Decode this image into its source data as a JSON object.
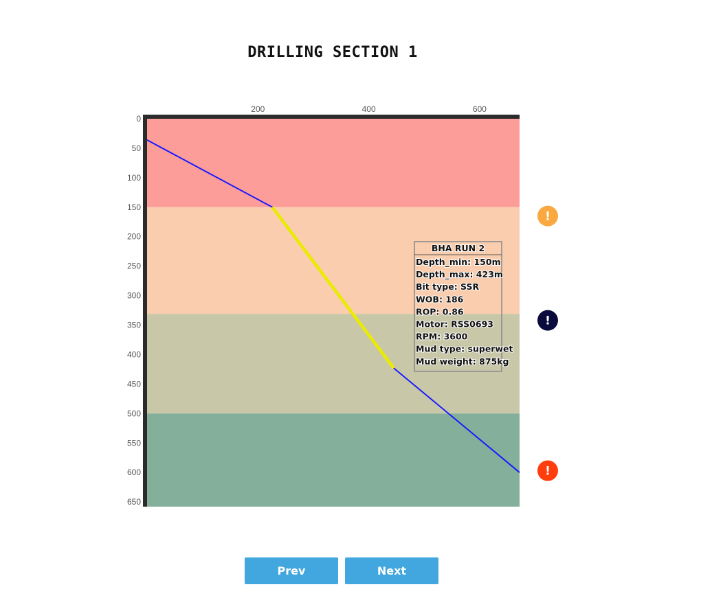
{
  "title": "DRILLING SECTION 1",
  "chart_data": {
    "type": "line",
    "title": "DRILLING SECTION 1",
    "x_ticks": [
      200,
      400,
      600
    ],
    "y_ticks": [
      0,
      50,
      100,
      150,
      200,
      250,
      300,
      350,
      400,
      450,
      500,
      550,
      600,
      650
    ],
    "xlim": [
      0,
      672
    ],
    "ylim": [
      0,
      658
    ],
    "y_inverted": true,
    "layers": [
      {
        "top": 0,
        "bottom": 150,
        "color": "#fc9d9a"
      },
      {
        "top": 150,
        "bottom": 331,
        "color": "#f9cdad"
      },
      {
        "top": 331,
        "bottom": 500,
        "color": "#c8c8a9"
      },
      {
        "top": 500,
        "bottom": 658,
        "color": "#83af9b"
      }
    ],
    "well_path": {
      "x": [
        0,
        226,
        445,
        672
      ],
      "y": [
        36,
        150,
        423,
        600
      ],
      "color": "#1a1aff"
    },
    "highlight_segment": {
      "x": [
        226,
        445
      ],
      "y": [
        150,
        423
      ],
      "color": "#ebeb00"
    },
    "alerts": [
      {
        "depth": 165,
        "color": "#f9a940",
        "symbol": "!"
      },
      {
        "depth": 342,
        "color": "#0a0a3c",
        "symbol": "!"
      },
      {
        "depth": 597,
        "color": "#ff3d0d",
        "symbol": "!"
      }
    ],
    "tooltip": {
      "heading": "BHA RUN 2",
      "lines": [
        "Depth_min: 150m",
        "Depth_max: 423m",
        "Bit type: SSR",
        "WOB: 186",
        "ROP: 0.86",
        "Motor: RSS0693",
        "RPM: 3600",
        "Mud type: superwet",
        "Mud weight: 875kg"
      ]
    }
  },
  "buttons": {
    "prev": "Prev",
    "next": "Next"
  }
}
